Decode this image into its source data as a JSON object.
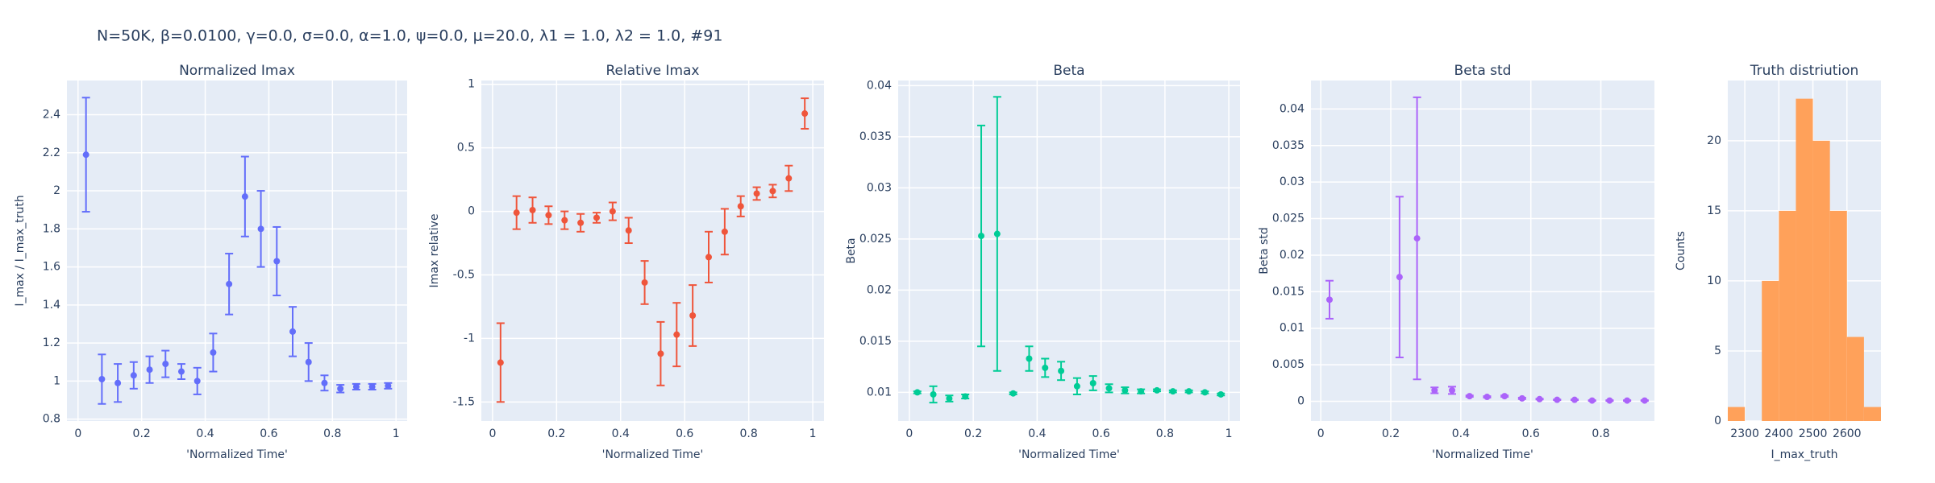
{
  "suptitle": "N=50K, β=0.0100, γ=0.0, σ=0.0,  α=1.0, ψ=0.0, μ=20.0, λ1 = 1.0, λ2 = 1.0, #91",
  "chart_data": [
    {
      "type": "scatter",
      "title": "Normalized Imax",
      "x_label": "'Normalized Time'",
      "y_label": "I_max / I_max_truth",
      "color": "#636efa",
      "x": [
        0.025,
        0.075,
        0.125,
        0.175,
        0.225,
        0.275,
        0.325,
        0.375,
        0.425,
        0.475,
        0.525,
        0.575,
        0.625,
        0.675,
        0.725,
        0.775,
        0.825,
        0.875,
        0.925,
        0.975
      ],
      "values": [
        2.19,
        1.01,
        0.99,
        1.03,
        1.06,
        1.09,
        1.05,
        1.0,
        1.15,
        1.51,
        1.97,
        1.8,
        1.63,
        1.26,
        1.1,
        0.99,
        0.96,
        0.97,
        0.97,
        0.975
      ],
      "errors": [
        0.3,
        0.13,
        0.1,
        0.07,
        0.07,
        0.07,
        0.04,
        0.07,
        0.1,
        0.16,
        0.21,
        0.2,
        0.18,
        0.13,
        0.1,
        0.04,
        0.02,
        0.015,
        0.015,
        0.015
      ],
      "xlim": [
        -0.035,
        1.035
      ],
      "ylim": [
        0.79,
        2.58
      ],
      "xticks": [
        0,
        0.2,
        0.4,
        0.6,
        0.8,
        1
      ],
      "yticks": [
        0.8,
        1,
        1.2,
        1.4,
        1.6,
        1.8,
        2,
        2.2,
        2.4
      ],
      "grid": true
    },
    {
      "type": "scatter",
      "title": "Relative Imax",
      "x_label": "'Normalized Time'",
      "y_label": "Imax relative",
      "color": "#EF553B",
      "x": [
        0.025,
        0.075,
        0.125,
        0.175,
        0.225,
        0.275,
        0.325,
        0.375,
        0.425,
        0.475,
        0.525,
        0.575,
        0.625,
        0.675,
        0.725,
        0.775,
        0.825,
        0.875,
        0.925,
        0.975
      ],
      "values": [
        -1.19,
        -0.01,
        0.01,
        -0.03,
        -0.07,
        -0.09,
        -0.05,
        0.0,
        -0.15,
        -0.56,
        -1.12,
        -0.97,
        -0.82,
        -0.36,
        -0.16,
        0.04,
        0.14,
        0.16,
        0.26,
        0.77
      ],
      "errors": [
        0.31,
        0.13,
        0.1,
        0.07,
        0.07,
        0.07,
        0.04,
        0.07,
        0.1,
        0.17,
        0.25,
        0.25,
        0.24,
        0.2,
        0.18,
        0.08,
        0.05,
        0.05,
        0.1,
        0.12
      ],
      "xlim": [
        -0.035,
        1.035
      ],
      "ylim": [
        -1.65,
        1.03
      ],
      "xticks": [
        0,
        0.2,
        0.4,
        0.6,
        0.8,
        1
      ],
      "yticks": [
        -1.5,
        -1,
        -0.5,
        0,
        0.5,
        1
      ],
      "grid": true
    },
    {
      "type": "scatter",
      "title": "Beta",
      "x_label": "'Normalized Time'",
      "y_label": "Beta",
      "color": "#00cc96",
      "x": [
        0.025,
        0.075,
        0.125,
        0.175,
        0.225,
        0.275,
        0.325,
        0.375,
        0.425,
        0.475,
        0.525,
        0.575,
        0.625,
        0.675,
        0.725,
        0.775,
        0.825,
        0.875,
        0.925,
        0.975
      ],
      "values": [
        0.01,
        0.0098,
        0.0094,
        0.0096,
        0.0253,
        0.0255,
        0.0099,
        0.0133,
        0.0124,
        0.0121,
        0.0106,
        0.0109,
        0.0104,
        0.0102,
        0.0101,
        0.0102,
        0.0101,
        0.0101,
        0.01,
        0.0098
      ],
      "errors": [
        0.0001,
        0.0008,
        0.0003,
        0.0002,
        0.0108,
        0.0134,
        0.0001,
        0.0012,
        0.0009,
        0.0009,
        0.0008,
        0.0007,
        0.0004,
        0.0003,
        0.0002,
        0.0001,
        0.0001,
        0.0001,
        0.0001,
        0.0001
      ],
      "xlim": [
        -0.035,
        1.035
      ],
      "ylim": [
        0.0072,
        0.0405
      ],
      "xticks": [
        0,
        0.2,
        0.4,
        0.6,
        0.8,
        1
      ],
      "yticks": [
        0.01,
        0.015,
        0.02,
        0.025,
        0.03,
        0.035,
        0.04
      ],
      "grid": true
    },
    {
      "type": "scatter",
      "title": "Beta std",
      "x_label": "'Normalized Time'",
      "y_label": "Beta std",
      "color": "#ab63fa",
      "x": [
        0.025,
        0.075,
        0.125,
        0.175,
        0.225,
        0.275,
        0.325,
        0.375,
        0.425,
        0.475,
        0.525,
        0.575,
        0.625,
        0.675,
        0.725,
        0.775,
        0.825,
        0.875,
        0.925
      ],
      "values": [
        0.0139,
        null,
        null,
        null,
        0.017,
        0.0223,
        0.0015,
        0.0015,
        0.0007,
        0.0006,
        0.0007,
        0.0004,
        0.0003,
        0.0002,
        0.0002,
        0.0001,
        0.0001,
        0.0001,
        0.0001
      ],
      "errors": [
        0.0026,
        null,
        null,
        null,
        0.011,
        0.0193,
        0.0004,
        0.0005,
        0.0001,
        0.0001,
        0.0001,
        0.0001,
        5e-05,
        5e-05,
        5e-05,
        5e-05,
        5e-05,
        5e-05,
        5e-05
      ],
      "xlim": [
        -0.028,
        0.953
      ],
      "ylim": [
        -0.0027,
        0.0439
      ],
      "xticks": [
        0,
        0.2,
        0.4,
        0.6,
        0.8
      ],
      "yticks": [
        0,
        0.005,
        0.01,
        0.015,
        0.02,
        0.025,
        0.03,
        0.035,
        0.04
      ],
      "grid": true
    },
    {
      "type": "histogram",
      "title": "Truth distriution",
      "x_label": "I_max_truth",
      "y_label": "Counts",
      "color": "#FFA15A",
      "bins": [
        2250,
        2300,
        2350,
        2400,
        2450,
        2500,
        2550,
        2600,
        2650,
        2700
      ],
      "values": [
        1,
        0,
        10,
        15,
        23,
        20,
        15,
        6,
        1
      ],
      "xlim": [
        2250,
        2700
      ],
      "ylim": [
        0,
        24.3
      ],
      "xticks": [
        2300,
        2400,
        2500,
        2600
      ],
      "yticks": [
        0,
        5,
        10,
        15,
        20
      ],
      "grid": true
    }
  ]
}
